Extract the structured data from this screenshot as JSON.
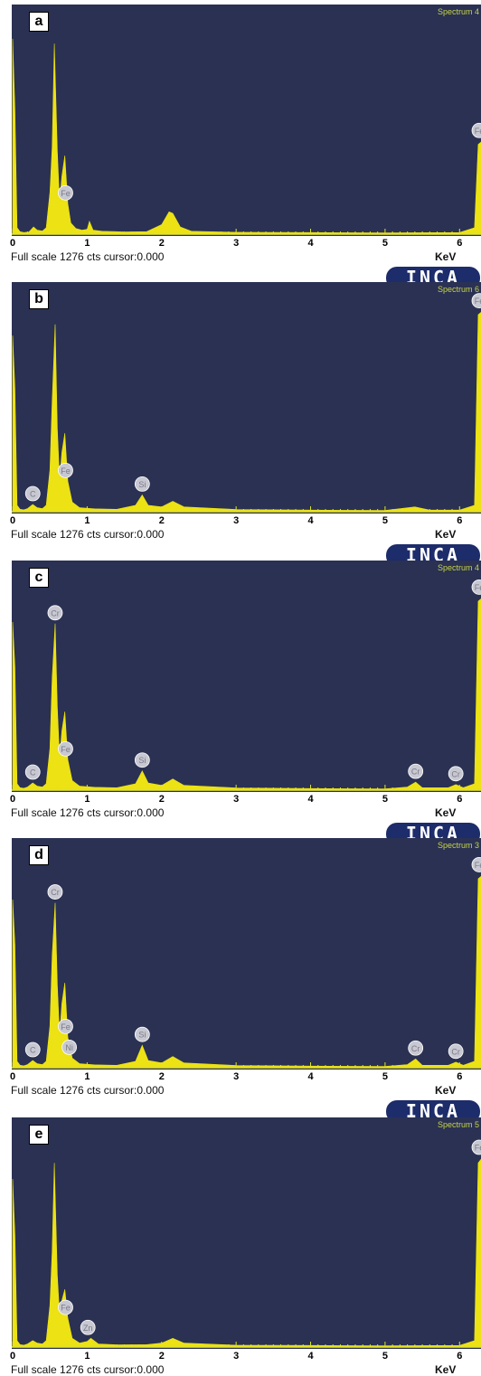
{
  "xaxis": {
    "ticks": [
      "0",
      "1",
      "2",
      "3",
      "4",
      "5",
      "6"
    ],
    "unit": "KeV",
    "xlim": [
      0,
      6.3
    ]
  },
  "footer_text": "Full scale 1276 cts cursor:0.000",
  "logo": "INCA",
  "colors": {
    "plot_bg": "#2a3153",
    "spectrum": "#ece214",
    "marker": "#c8c8d2",
    "grid_tick": "#e2e22a"
  },
  "chart_data": [
    {
      "type": "area",
      "panel": "a",
      "spectrum_label": "Spectrum 4",
      "x": [
        0,
        0.03,
        0.06,
        0.1,
        0.15,
        0.22,
        0.28,
        0.33,
        0.4,
        0.45,
        0.5,
        0.53,
        0.56,
        0.6,
        0.63,
        0.66,
        0.7,
        0.74,
        0.78,
        0.85,
        0.93,
        1.0,
        1.03,
        1.08,
        1.2,
        1.5,
        1.8,
        2.0,
        2.1,
        2.15,
        2.25,
        2.4,
        3.0,
        4.0,
        5.0,
        6.0,
        6.2,
        6.25,
        6.3
      ],
      "values": [
        1220,
        780,
        40,
        15,
        10,
        14,
        45,
        25,
        20,
        40,
        260,
        545,
        1190,
        520,
        200,
        360,
        490,
        190,
        70,
        35,
        25,
        30,
        80,
        25,
        18,
        14,
        16,
        60,
        140,
        130,
        45,
        18,
        12,
        10,
        8,
        10,
        40,
        560,
        580
      ],
      "markers": [
        {
          "label": "Fe",
          "x": 0.71
        },
        {
          "label": "Fe",
          "x": 6.3
        }
      ],
      "ylim": [
        0,
        1276
      ]
    },
    {
      "type": "area",
      "panel": "b",
      "spectrum_label": "Spectrum 6",
      "x": [
        0,
        0.03,
        0.06,
        0.1,
        0.15,
        0.2,
        0.27,
        0.33,
        0.4,
        0.45,
        0.5,
        0.53,
        0.57,
        0.6,
        0.63,
        0.66,
        0.7,
        0.74,
        0.8,
        0.9,
        1.1,
        1.4,
        1.65,
        1.74,
        1.82,
        2.0,
        2.15,
        2.3,
        3.0,
        4.0,
        5.0,
        5.4,
        5.6,
        6.0,
        6.2,
        6.25,
        6.3
      ],
      "values": [
        1100,
        770,
        40,
        15,
        12,
        20,
        45,
        25,
        20,
        40,
        260,
        690,
        1170,
        520,
        200,
        370,
        490,
        190,
        60,
        25,
        18,
        15,
        40,
        105,
        40,
        30,
        65,
        30,
        14,
        10,
        8,
        30,
        10,
        10,
        40,
        1230,
        1250
      ],
      "markers": [
        {
          "label": "C",
          "x": 0.27
        },
        {
          "label": "Fe",
          "x": 0.71
        },
        {
          "label": "Si",
          "x": 1.74
        },
        {
          "label": "Fe",
          "x": 6.3
        }
      ],
      "ylim": [
        0,
        1276
      ]
    },
    {
      "type": "area",
      "panel": "c",
      "spectrum_label": "Spectrum 4",
      "x": [
        0,
        0.03,
        0.06,
        0.1,
        0.15,
        0.2,
        0.27,
        0.33,
        0.4,
        0.45,
        0.5,
        0.53,
        0.57,
        0.6,
        0.63,
        0.66,
        0.7,
        0.74,
        0.8,
        0.9,
        1.1,
        1.4,
        1.65,
        1.74,
        1.82,
        2.0,
        2.15,
        2.3,
        3.0,
        4.0,
        5.0,
        5.3,
        5.41,
        5.5,
        5.85,
        5.95,
        6.05,
        6.2,
        6.25,
        6.3
      ],
      "values": [
        1050,
        770,
        40,
        15,
        12,
        20,
        45,
        25,
        20,
        40,
        260,
        700,
        1040,
        520,
        200,
        370,
        490,
        190,
        60,
        25,
        18,
        15,
        40,
        120,
        45,
        30,
        70,
        30,
        14,
        10,
        8,
        20,
        50,
        15,
        15,
        35,
        15,
        40,
        1180,
        1200
      ],
      "markers": [
        {
          "label": "C",
          "x": 0.27
        },
        {
          "label": "Cr",
          "x": 0.57
        },
        {
          "label": "Fe",
          "x": 0.71
        },
        {
          "label": "Si",
          "x": 1.74
        },
        {
          "label": "Cr",
          "x": 5.41
        },
        {
          "label": "Cr",
          "x": 5.95
        },
        {
          "label": "Fe",
          "x": 6.3
        }
      ],
      "ylim": [
        0,
        1276
      ]
    },
    {
      "type": "area",
      "panel": "d",
      "spectrum_label": "Spectrum 3",
      "x": [
        0,
        0.03,
        0.06,
        0.1,
        0.15,
        0.2,
        0.27,
        0.33,
        0.4,
        0.45,
        0.5,
        0.53,
        0.57,
        0.6,
        0.63,
        0.66,
        0.7,
        0.74,
        0.8,
        0.9,
        1.1,
        1.4,
        1.65,
        1.74,
        1.82,
        2.0,
        2.15,
        2.3,
        3.0,
        4.0,
        5.0,
        5.3,
        5.41,
        5.5,
        5.85,
        5.95,
        6.05,
        6.2,
        6.25,
        6.3
      ],
      "values": [
        1050,
        770,
        40,
        15,
        12,
        20,
        45,
        25,
        20,
        40,
        260,
        700,
        1030,
        520,
        200,
        400,
        530,
        190,
        60,
        25,
        18,
        15,
        40,
        140,
        45,
        30,
        70,
        30,
        14,
        10,
        8,
        20,
        55,
        15,
        15,
        35,
        15,
        40,
        1180,
        1200
      ],
      "markers": [
        {
          "label": "C",
          "x": 0.27
        },
        {
          "label": "Cr",
          "x": 0.57
        },
        {
          "label": "Fe",
          "x": 0.71
        },
        {
          "label": "Ni",
          "x": 0.76
        },
        {
          "label": "Si",
          "x": 1.74
        },
        {
          "label": "Cr",
          "x": 5.41
        },
        {
          "label": "Cr",
          "x": 5.95
        },
        {
          "label": "Fe",
          "x": 6.3
        }
      ],
      "ylim": [
        0,
        1276
      ]
    },
    {
      "type": "area",
      "panel": "e",
      "spectrum_label": "Spectrum 5",
      "x": [
        0,
        0.03,
        0.06,
        0.1,
        0.15,
        0.2,
        0.27,
        0.33,
        0.4,
        0.45,
        0.5,
        0.53,
        0.56,
        0.6,
        0.63,
        0.66,
        0.7,
        0.74,
        0.8,
        0.9,
        1.0,
        1.05,
        1.15,
        1.4,
        1.8,
        2.0,
        2.15,
        2.3,
        3.0,
        4.0,
        5.0,
        6.0,
        6.2,
        6.25,
        6.3
      ],
      "values": [
        1050,
        700,
        40,
        15,
        12,
        20,
        40,
        25,
        20,
        40,
        260,
        600,
        1150,
        450,
        200,
        290,
        360,
        180,
        55,
        25,
        35,
        55,
        20,
        14,
        15,
        25,
        55,
        25,
        12,
        10,
        8,
        10,
        40,
        1150,
        1180
      ],
      "markers": [
        {
          "label": "Fe",
          "x": 0.71
        },
        {
          "label": "Zn",
          "x": 1.01
        },
        {
          "label": "Fe",
          "x": 6.3
        }
      ],
      "ylim": [
        0,
        1276
      ]
    }
  ]
}
